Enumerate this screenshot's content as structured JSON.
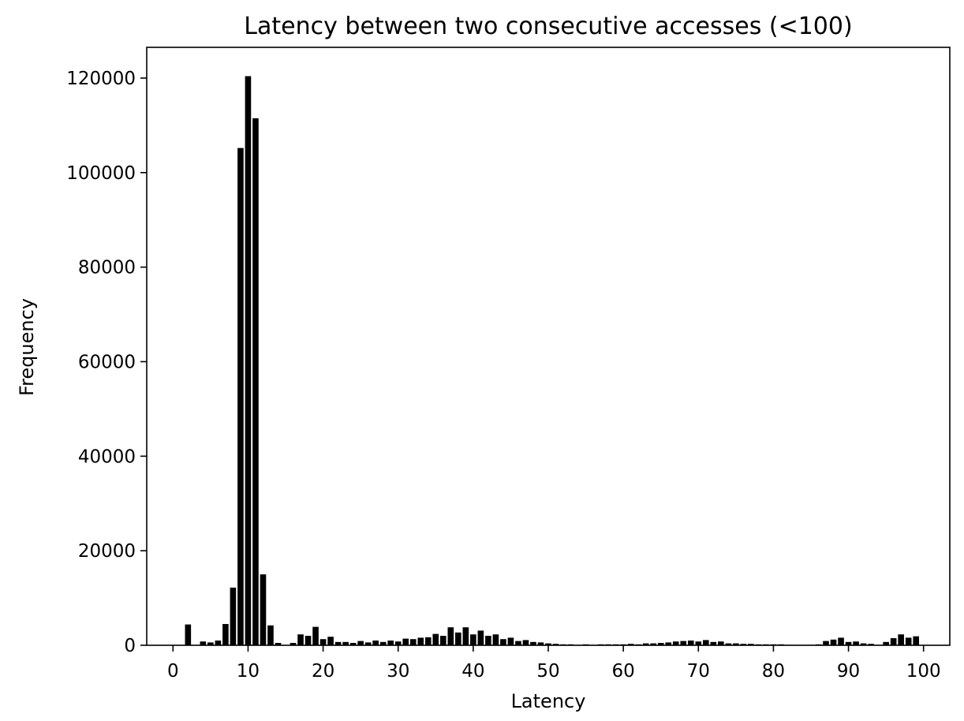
{
  "chart_data": {
    "type": "bar",
    "title": "Latency between two consecutive accesses (<100)",
    "xlabel": "Latency",
    "ylabel": "Frequency",
    "xlim": [
      -3.5,
      103.5
    ],
    "ylim": [
      0,
      126500
    ],
    "x_ticks": [
      "0",
      "10",
      "20",
      "30",
      "40",
      "50",
      "60",
      "70",
      "80",
      "90",
      "100"
    ],
    "y_ticks": [
      "0",
      "20000",
      "40000",
      "60000",
      "80000",
      "100000",
      "120000"
    ],
    "grid": false,
    "bar_color": "#000000",
    "x": [
      0,
      1,
      2,
      3,
      4,
      5,
      6,
      7,
      8,
      9,
      10,
      11,
      12,
      13,
      14,
      15,
      16,
      17,
      18,
      19,
      20,
      21,
      22,
      23,
      24,
      25,
      26,
      27,
      28,
      29,
      30,
      31,
      32,
      33,
      34,
      35,
      36,
      37,
      38,
      39,
      40,
      41,
      42,
      43,
      44,
      45,
      46,
      47,
      48,
      49,
      50,
      51,
      52,
      53,
      54,
      55,
      56,
      57,
      58,
      59,
      60,
      61,
      62,
      63,
      64,
      65,
      66,
      67,
      68,
      69,
      70,
      71,
      72,
      73,
      74,
      75,
      76,
      77,
      78,
      79,
      80,
      81,
      82,
      83,
      84,
      85,
      86,
      87,
      88,
      89,
      90,
      91,
      92,
      93,
      94,
      95,
      96,
      97,
      98,
      99
    ],
    "values": [
      0,
      0,
      4400,
      0,
      800,
      600,
      1000,
      4500,
      12200,
      105200,
      120400,
      111500,
      15000,
      4200,
      500,
      0,
      500,
      2300,
      2000,
      3900,
      1300,
      1800,
      700,
      700,
      500,
      900,
      600,
      1000,
      700,
      1000,
      800,
      1400,
      1300,
      1600,
      1700,
      2400,
      2000,
      3800,
      2700,
      3800,
      2300,
      3100,
      2000,
      2300,
      1300,
      1600,
      900,
      1100,
      700,
      600,
      400,
      300,
      200,
      200,
      100,
      200,
      100,
      200,
      200,
      200,
      200,
      300,
      200,
      400,
      400,
      500,
      600,
      800,
      900,
      1000,
      800,
      1100,
      700,
      800,
      400,
      400,
      300,
      300,
      200,
      200,
      200,
      200,
      100,
      100,
      100,
      100,
      200,
      900,
      1200,
      1600,
      700,
      800,
      400,
      300,
      100,
      700,
      1500,
      2300,
      1600,
      1900
    ]
  }
}
